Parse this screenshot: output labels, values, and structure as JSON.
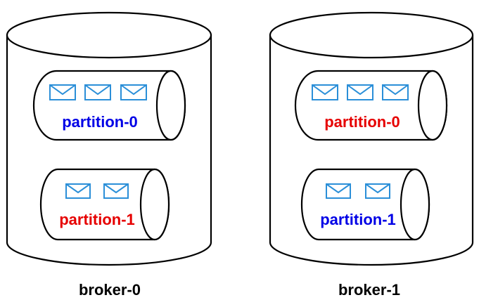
{
  "colors": {
    "leader": "#0000e6",
    "follower": "#e60000",
    "envelope": "#2b8fd8",
    "outline": "#000000"
  },
  "icons": {
    "message": "envelope-icon"
  },
  "brokers": [
    {
      "label": "broker-0",
      "partitions": [
        {
          "label": "partition-0",
          "role": "leader",
          "messages": 3
        },
        {
          "label": "partition-1",
          "role": "follower",
          "messages": 2
        }
      ]
    },
    {
      "label": "broker-1",
      "partitions": [
        {
          "label": "partition-0",
          "role": "follower",
          "messages": 3
        },
        {
          "label": "partition-1",
          "role": "leader",
          "messages": 2
        }
      ]
    }
  ]
}
